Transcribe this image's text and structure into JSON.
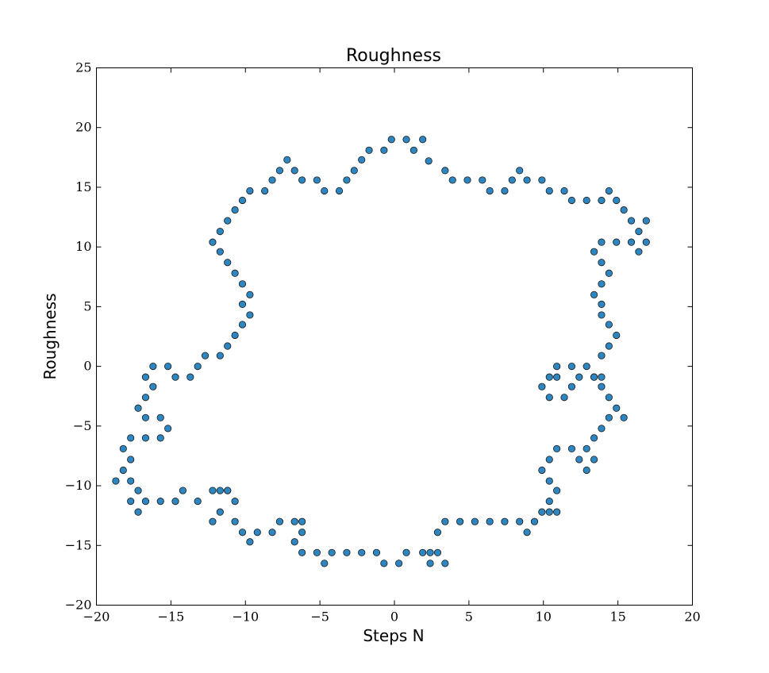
{
  "chart_data": {
    "type": "scatter",
    "title": "Roughness",
    "xlabel": "Steps N",
    "ylabel": "Roughness",
    "xlim": [
      -20,
      20
    ],
    "ylim": [
      -20,
      25
    ],
    "xticks": [
      -20,
      -15,
      -10,
      -5,
      0,
      5,
      10,
      15,
      20
    ],
    "yticks": [
      -20,
      -15,
      -10,
      -5,
      0,
      5,
      10,
      15,
      20,
      25
    ],
    "xtick_labels": [
      "−20",
      "−15",
      "−10",
      "−5",
      "0",
      "5",
      "10",
      "15",
      "20"
    ],
    "ytick_labels": [
      "−20",
      "−15",
      "−10",
      "−5",
      "0",
      "5",
      "10",
      "15",
      "20",
      "25"
    ],
    "grid": false,
    "legend": false,
    "marker_color": "#2e86c1",
    "series": [
      {
        "x": [
          -0.2,
          0.8,
          1.9,
          1.3,
          2.3,
          3.4,
          3.9,
          4.9,
          5.9,
          6.4,
          7.4,
          7.9,
          8.4,
          8.9,
          9.9,
          10.4,
          11.4,
          11.9,
          12.9,
          13.9,
          14.4,
          14.9,
          15.4,
          15.9,
          16.4,
          16.9,
          16.9,
          16.4,
          15.9,
          14.9,
          13.9,
          13.4,
          13.9,
          13.9,
          14.4,
          13.9,
          13.4,
          13.9,
          14.4,
          14.9,
          14.4,
          13.9,
          13.4,
          13.9,
          12.9,
          11.9,
          12.4,
          11.4,
          11.9,
          10.9,
          10.9,
          10.4,
          10.4,
          9.9,
          13.4,
          13.9,
          14.4,
          14.9,
          15.4,
          14.4,
          13.9,
          13.4,
          13.4,
          12.9,
          12.9,
          12.4,
          11.9,
          10.9,
          10.4,
          10.4,
          9.9,
          10.4,
          10.9,
          10.9,
          10.4,
          9.9,
          9.4,
          8.9,
          8.4,
          7.4,
          6.4,
          5.4,
          4.4,
          3.4,
          3.4,
          2.9,
          2.4,
          2.9,
          2.4,
          1.9,
          0.8,
          0.3,
          -0.7,
          -1.2,
          -2.2,
          -3.2,
          -4.2,
          -4.7,
          -5.2,
          -6.2,
          -6.2,
          -6.7,
          -6.2,
          -6.7,
          -7.7,
          -8.2,
          -9.2,
          -9.7,
          -10.2,
          -10.7,
          -10.7,
          -11.2,
          -11.7,
          -12.2,
          -11.2,
          -11.7,
          -12.2,
          -13.2,
          -14.2,
          -14.7,
          -15.7,
          -16.7,
          -17.2,
          -17.2,
          -17.7,
          -17.7,
          -18.7,
          -18.2,
          -17.7,
          -18.2,
          -17.7,
          -16.7,
          -15.7,
          -15.2,
          -15.7,
          -16.7,
          -17.2,
          -16.7,
          -16.2,
          -16.7,
          -16.2,
          -15.2,
          -14.7,
          -13.7,
          -13.2,
          -12.7,
          -11.7,
          -11.2,
          -10.7,
          -10.2,
          -9.7,
          -10.2,
          -9.7,
          -10.2,
          -10.7,
          -11.2,
          -11.7,
          -12.2,
          -11.7,
          -11.2,
          -10.7,
          -10.2,
          -9.7,
          -8.7,
          -8.2,
          -7.7,
          -7.2,
          -6.7,
          -6.2,
          -5.2,
          -4.7,
          -3.7,
          -3.2,
          -2.7,
          -2.2,
          -1.7,
          -0.7
        ],
        "y": [
          19.0,
          19.0,
          19.0,
          18.1,
          17.2,
          16.4,
          15.6,
          15.6,
          15.6,
          14.7,
          14.7,
          15.6,
          16.4,
          15.6,
          15.6,
          14.7,
          14.7,
          13.9,
          13.9,
          13.9,
          14.7,
          13.9,
          13.1,
          12.2,
          11.3,
          12.2,
          10.4,
          9.6,
          10.4,
          10.4,
          10.4,
          9.6,
          8.7,
          6.9,
          7.8,
          5.2,
          6.0,
          4.3,
          3.5,
          2.6,
          1.7,
          0.9,
          -0.9,
          -0.9,
          0.0,
          -1.7,
          -0.9,
          -2.6,
          0.0,
          -0.9,
          0.0,
          -0.9,
          -2.6,
          -1.7,
          -0.9,
          -1.7,
          -2.6,
          -3.5,
          -4.3,
          -4.3,
          -5.2,
          -6.0,
          -7.8,
          -6.9,
          -8.7,
          -7.8,
          -6.9,
          -6.9,
          -7.8,
          -9.6,
          -8.7,
          -11.3,
          -10.4,
          -12.2,
          -12.2,
          -12.2,
          -13.0,
          -13.9,
          -13.0,
          -13.0,
          -13.0,
          -13.0,
          -13.0,
          -13.0,
          -16.5,
          -13.9,
          -15.6,
          -15.6,
          -16.5,
          -15.6,
          -15.6,
          -16.5,
          -16.5,
          -15.6,
          -15.6,
          -15.6,
          -15.6,
          -16.5,
          -15.6,
          -15.6,
          -13.9,
          -14.7,
          -13.0,
          -13.0,
          -13.0,
          -13.9,
          -13.9,
          -14.7,
          -13.9,
          -13.0,
          -11.3,
          -10.4,
          -12.2,
          -13.0,
          -10.4,
          -10.4,
          -10.4,
          -11.3,
          -10.4,
          -11.3,
          -11.3,
          -11.3,
          -12.2,
          -10.4,
          -11.3,
          -9.6,
          -9.6,
          -8.7,
          -7.8,
          -6.9,
          -6.0,
          -6.0,
          -6.0,
          -5.2,
          -4.3,
          -4.3,
          -3.5,
          -2.6,
          -1.7,
          -0.9,
          0.0,
          0.0,
          -0.9,
          -0.9,
          0.0,
          0.9,
          0.9,
          1.7,
          2.6,
          3.5,
          4.3,
          5.2,
          6.0,
          6.9,
          7.8,
          8.7,
          9.6,
          10.4,
          11.3,
          12.2,
          13.1,
          13.9,
          14.7,
          14.7,
          15.6,
          16.4,
          17.3,
          16.4,
          15.6,
          15.6,
          14.7,
          14.7,
          15.6,
          16.4,
          17.3,
          18.1,
          18.1
        ]
      }
    ]
  }
}
